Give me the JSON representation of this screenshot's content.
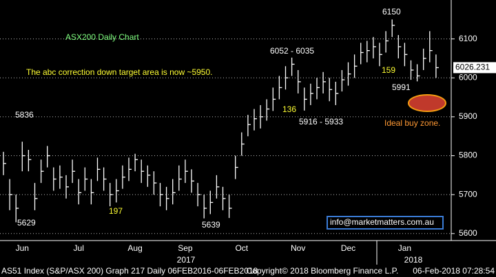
{
  "chart_data": {
    "type": "ohlc",
    "color": "#ffffff",
    "grid": true,
    "ylim": [
      5582,
      6200
    ],
    "yticks": [
      5600,
      5700,
      5800,
      5900,
      6000,
      6100
    ],
    "categories": [
      null,
      null,
      null,
      "Jun",
      null,
      null,
      null,
      null,
      null,
      null,
      null,
      null,
      "Jul",
      null,
      null,
      null,
      null,
      null,
      null,
      null,
      null,
      "Aug",
      null,
      null,
      null,
      null,
      null,
      null,
      null,
      "Sep",
      null,
      null,
      null,
      null,
      null,
      null,
      null,
      null,
      "Oct",
      null,
      null,
      null,
      null,
      null,
      null,
      null,
      null,
      "Nov",
      null,
      null,
      null,
      null,
      null,
      null,
      null,
      "Dec",
      null,
      null,
      null,
      null,
      null,
      null,
      null,
      null,
      "Jan",
      null,
      null,
      null,
      null,
      null
    ],
    "years": [
      "2017",
      "2018"
    ],
    "high": [
      5810,
      5740,
      5700,
      5836,
      5815,
      5730,
      5790,
      5825,
      5770,
      5775,
      5750,
      5790,
      5740,
      5770,
      5740,
      5795,
      5770,
      5730,
      5740,
      5775,
      5795,
      5805,
      5790,
      5775,
      5760,
      5730,
      5720,
      5740,
      5775,
      5790,
      5765,
      5730,
      5700,
      5710,
      5750,
      5720,
      5700,
      5800,
      5860,
      5905,
      5920,
      5930,
      5945,
      5975,
      6005,
      6030,
      6052,
      6020,
      5975,
      5985,
      6000,
      6015,
      6000,
      5990,
      6020,
      6040,
      6060,
      6090,
      6095,
      6105,
      6090,
      6120,
      6150,
      6110,
      6090,
      6045,
      6035,
      6075,
      6120,
      6060
    ],
    "low": [
      5750,
      5660,
      5629,
      5760,
      5760,
      5660,
      5730,
      5770,
      5710,
      5715,
      5690,
      5730,
      5675,
      5710,
      5675,
      5735,
      5710,
      5670,
      5680,
      5715,
      5735,
      5760,
      5730,
      5720,
      5700,
      5670,
      5660,
      5675,
      5710,
      5730,
      5705,
      5670,
      5639,
      5650,
      5690,
      5660,
      5640,
      5740,
      5800,
      5850,
      5865,
      5870,
      5890,
      5915,
      5945,
      5970,
      6005,
      5960,
      5916,
      5930,
      5945,
      5960,
      5940,
      5930,
      5965,
      5980,
      6000,
      6035,
      6040,
      6050,
      6030,
      6065,
      6105,
      6050,
      6030,
      5995,
      5991,
      6020,
      6040,
      6000
    ],
    "close": [
      5780,
      5700,
      5665,
      5800,
      5790,
      5690,
      5760,
      5800,
      5740,
      5745,
      5720,
      5760,
      5705,
      5740,
      5705,
      5765,
      5740,
      5700,
      5710,
      5745,
      5765,
      5790,
      5760,
      5750,
      5730,
      5700,
      5690,
      5705,
      5740,
      5760,
      5735,
      5700,
      5665,
      5680,
      5720,
      5690,
      5665,
      5770,
      5830,
      5880,
      5895,
      5900,
      5920,
      5945,
      5975,
      6000,
      6035,
      5990,
      5945,
      5960,
      5975,
      5990,
      5970,
      5960,
      5995,
      6010,
      6030,
      6065,
      6070,
      6080,
      6060,
      6095,
      6135,
      6080,
      6060,
      6020,
      6005,
      6050,
      6070,
      6026.231
    ],
    "annotations": [
      "ASX200 Daily Chart",
      "The abc correction down target area is now ~5950.",
      "5836",
      "5629",
      "197",
      "5639",
      "6052 - 6035",
      "136",
      "5916 - 5933",
      "6150",
      "159",
      "5991",
      "Ideal buy zone."
    ],
    "contact": "info@marketmatters.com.au",
    "footer": [
      "AS51 Index (S&P/ASX 200) Graph 217  Daily 06FEB2016-06FEB2018",
      "Copyright© 2018 Bloomberg Finance L.P.",
      "06-Feb-2018 07:28:54"
    ]
  }
}
